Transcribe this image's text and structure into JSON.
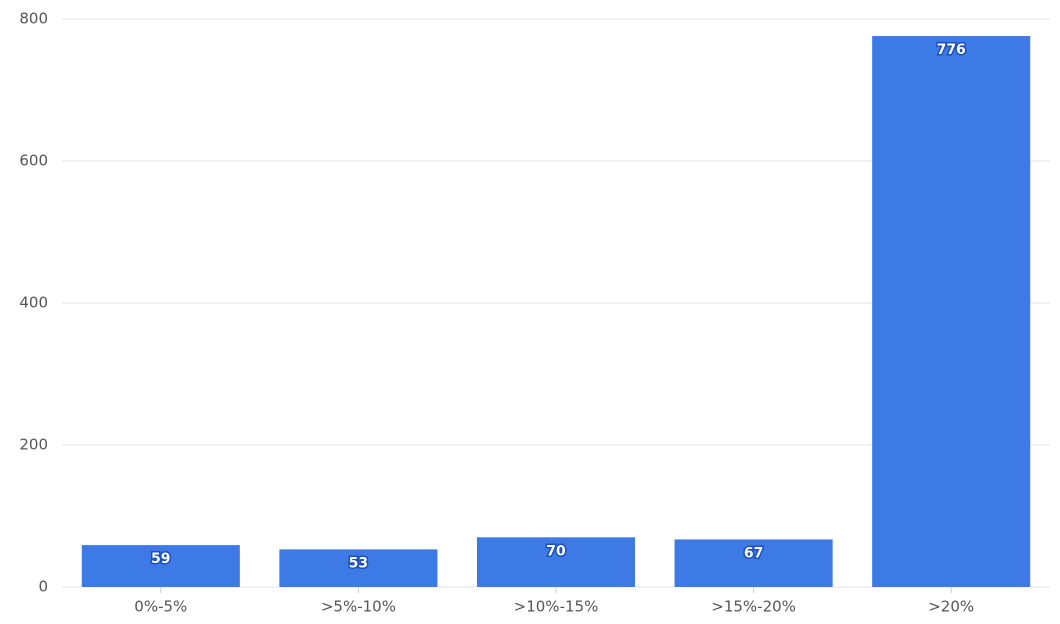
{
  "chart_data": {
    "type": "bar",
    "categories": [
      "0%-5%",
      ">5%-10%",
      ">10%-15%",
      ">15%-20%",
      ">20%"
    ],
    "values": [
      59,
      53,
      70,
      67,
      776
    ],
    "color": "#3d7ae5",
    "ylim": [
      0,
      800
    ],
    "yticks": [
      0,
      200,
      400,
      600,
      800
    ],
    "grid": true
  }
}
